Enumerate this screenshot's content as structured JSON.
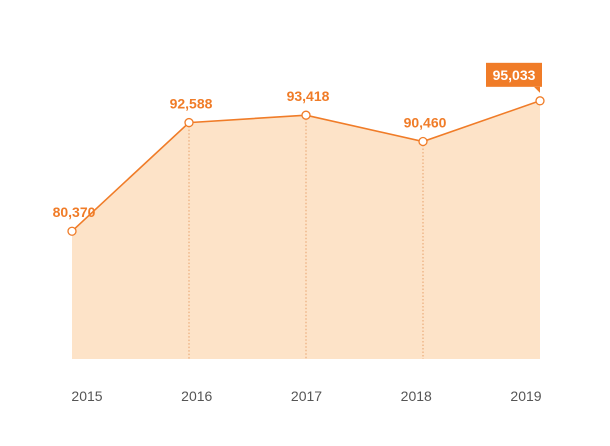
{
  "chart_data": {
    "type": "area",
    "categories": [
      "2015",
      "2016",
      "2017",
      "2018",
      "2019"
    ],
    "series": [
      {
        "values": [
          80370,
          92588,
          93418,
          90460,
          95033
        ]
      }
    ],
    "data_labels": [
      "80,370",
      "92,588",
      "93,418",
      "90,460",
      "95,033"
    ],
    "highlighted_point": "2019",
    "title": "",
    "xlabel": "",
    "ylabel": "",
    "ylim": [
      66000,
      98500
    ],
    "grid": false,
    "legend": "none"
  },
  "colors": {
    "line": "#f07c28",
    "area_fill": "#fde3c8",
    "point_fill": "#ffffff",
    "label": "#f07c28",
    "callout_bg": "#f07c28",
    "tick_text": "#555555",
    "drop_line": "#e8a06a"
  }
}
